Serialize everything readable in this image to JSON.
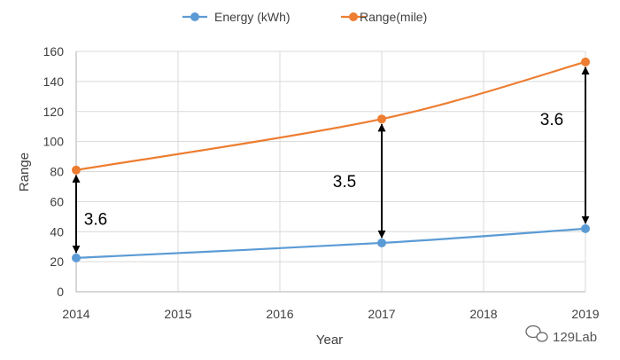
{
  "chart_data": {
    "type": "line",
    "x": [
      2014,
      2017,
      2019
    ],
    "xticks": [
      "2014",
      "2015",
      "2016",
      "2017",
      "2018",
      "2019"
    ],
    "xlim": [
      2014,
      2019
    ],
    "ylim": [
      0,
      160
    ],
    "yticks": [
      "0",
      "20",
      "40",
      "60",
      "80",
      "100",
      "120",
      "140",
      "160"
    ],
    "xlabel": "Year",
    "ylabel": "Range",
    "grid": true,
    "legend_position": "top",
    "series": [
      {
        "name": "Energy (kWh)",
        "color": "#5b9bd5",
        "values": [
          22.5,
          32.5,
          42
        ]
      },
      {
        "name": "Range(mile)",
        "color": "#ed7d31",
        "values": [
          81,
          115,
          153
        ]
      }
    ],
    "annotations": [
      {
        "label": "3.6",
        "x": 2014
      },
      {
        "label": "3.5",
        "x": 2017
      },
      {
        "label": "3.6",
        "x": 2019
      }
    ]
  },
  "watermark": {
    "text": "129Lab",
    "icon": "chat-bubble-icon"
  }
}
